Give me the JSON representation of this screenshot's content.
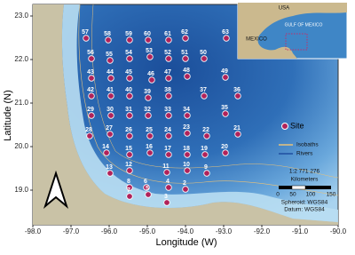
{
  "axes": {
    "x_label": "Longitude (W)",
    "y_label": "Latitude (N)",
    "x_ticks": [
      "-98.0",
      "-97.0",
      "-96.0",
      "-95.0",
      "-94.0",
      "-93.0",
      "-92.0",
      "-91.0",
      "-90.0"
    ],
    "y_ticks": [
      "23.0",
      "22.0",
      "21.0",
      "20.0",
      "19.0"
    ]
  },
  "sites": [
    "57",
    "58",
    "59",
    "60",
    "61",
    "62",
    "63",
    "56",
    "55",
    "54",
    "53",
    "52",
    "51",
    "50",
    "43",
    "44",
    "45",
    "46",
    "47",
    "48",
    "49",
    "42",
    "41",
    "40",
    "39",
    "38",
    "37",
    "36",
    "29",
    "30",
    "31",
    "32",
    "33",
    "34",
    "35",
    "28",
    "27",
    "26",
    "25",
    "24",
    "23",
    "22",
    "21",
    "14",
    "15",
    "16",
    "17",
    "18",
    "19",
    "20",
    "13",
    "12",
    "11",
    "10",
    "9",
    "8",
    "6",
    "4",
    "2",
    "7",
    "5",
    "3"
  ],
  "legend": {
    "site": "Site",
    "isobaths": "Isobaths",
    "rivers": "Rivers"
  },
  "scale": {
    "ratio": "1:2 771 276",
    "unit": "Kilometers",
    "ticks": [
      "0",
      "50",
      "100",
      "150"
    ],
    "spheroid": "Spheroid: WGS84",
    "datum": "Datum: WGS84"
  },
  "inset": {
    "usa": "USA",
    "mexico": "MEXICO",
    "gulf": "GULF OF MEXICO"
  }
}
